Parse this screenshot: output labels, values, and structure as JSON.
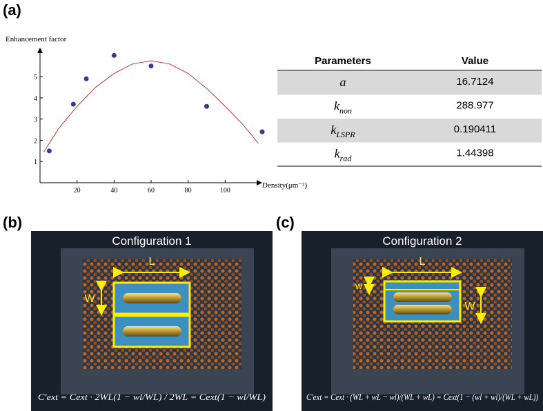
{
  "labels": [
    "(a)",
    "(b)",
    "(c)"
  ],
  "chart_data": {
    "type": "scatter",
    "y_label": "Enhancement factor",
    "x_label": "Density(μm⁻²)",
    "xlim": [
      0,
      120
    ],
    "ylim": [
      0,
      6.5
    ],
    "xticks": [
      20,
      40,
      60,
      80,
      100
    ],
    "yticks": [
      1,
      2,
      3,
      4,
      5
    ],
    "series": [
      {
        "style": "points",
        "color": "#3a3a8c",
        "x": [
          5,
          18,
          25,
          40,
          60,
          90,
          120
        ],
        "values": [
          1.5,
          3.7,
          4.9,
          6.0,
          5.5,
          3.6,
          2.4
        ]
      },
      {
        "style": "line",
        "color": "#c0392b",
        "x": [
          2,
          10,
          20,
          30,
          40,
          50,
          60,
          70,
          80,
          90,
          100,
          110,
          118
        ],
        "values": [
          1.45,
          2.55,
          3.6,
          4.5,
          5.15,
          5.6,
          5.75,
          5.6,
          5.15,
          4.45,
          3.6,
          2.7,
          1.85
        ]
      }
    ]
  },
  "table": {
    "headers": [
      "Parameters",
      "Value"
    ],
    "rows": [
      [
        {
          "symbol": "a"
        },
        "16.7124"
      ],
      [
        {
          "symbol": "k",
          "subscript": "non"
        },
        "288.977"
      ],
      [
        {
          "symbol": "k",
          "subscript": "LSPR"
        },
        "0.190411"
      ],
      [
        {
          "symbol": "k",
          "subscript": "rad"
        },
        "1.44398"
      ]
    ]
  },
  "panels": [
    {
      "title": "Configuration 1",
      "dimension_labels": [
        "L",
        "W"
      ],
      "formula": "C′ext = Cext · 2WL(1 − wl/WL) / 2WL = Cext(1 − wl/WL)"
    },
    {
      "title": "Configuration 2",
      "dimension_labels": [
        "L",
        "w",
        "W"
      ],
      "formula": "C′ext = Cext · (WL + wL − wl)/(WL + wL) = Cext(1 − (wl + wl)/(WL + wL))"
    }
  ]
}
